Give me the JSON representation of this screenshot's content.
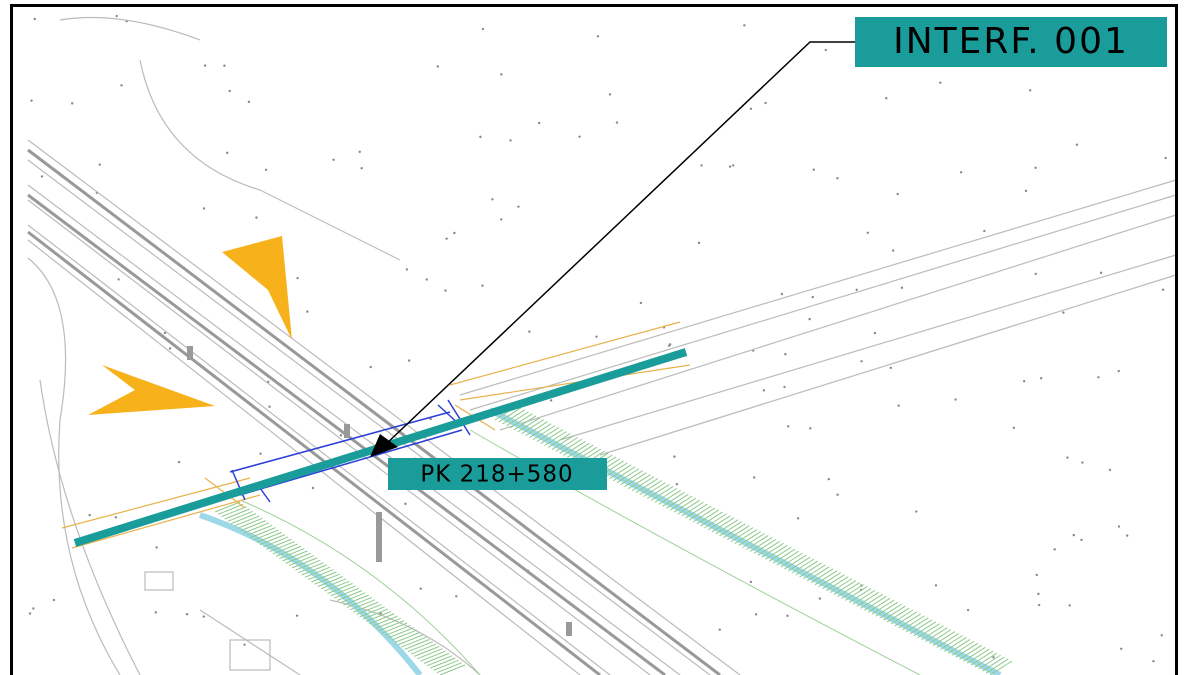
{
  "labels": {
    "interference": "INTERF. 001",
    "station": "PK 218+580"
  }
}
